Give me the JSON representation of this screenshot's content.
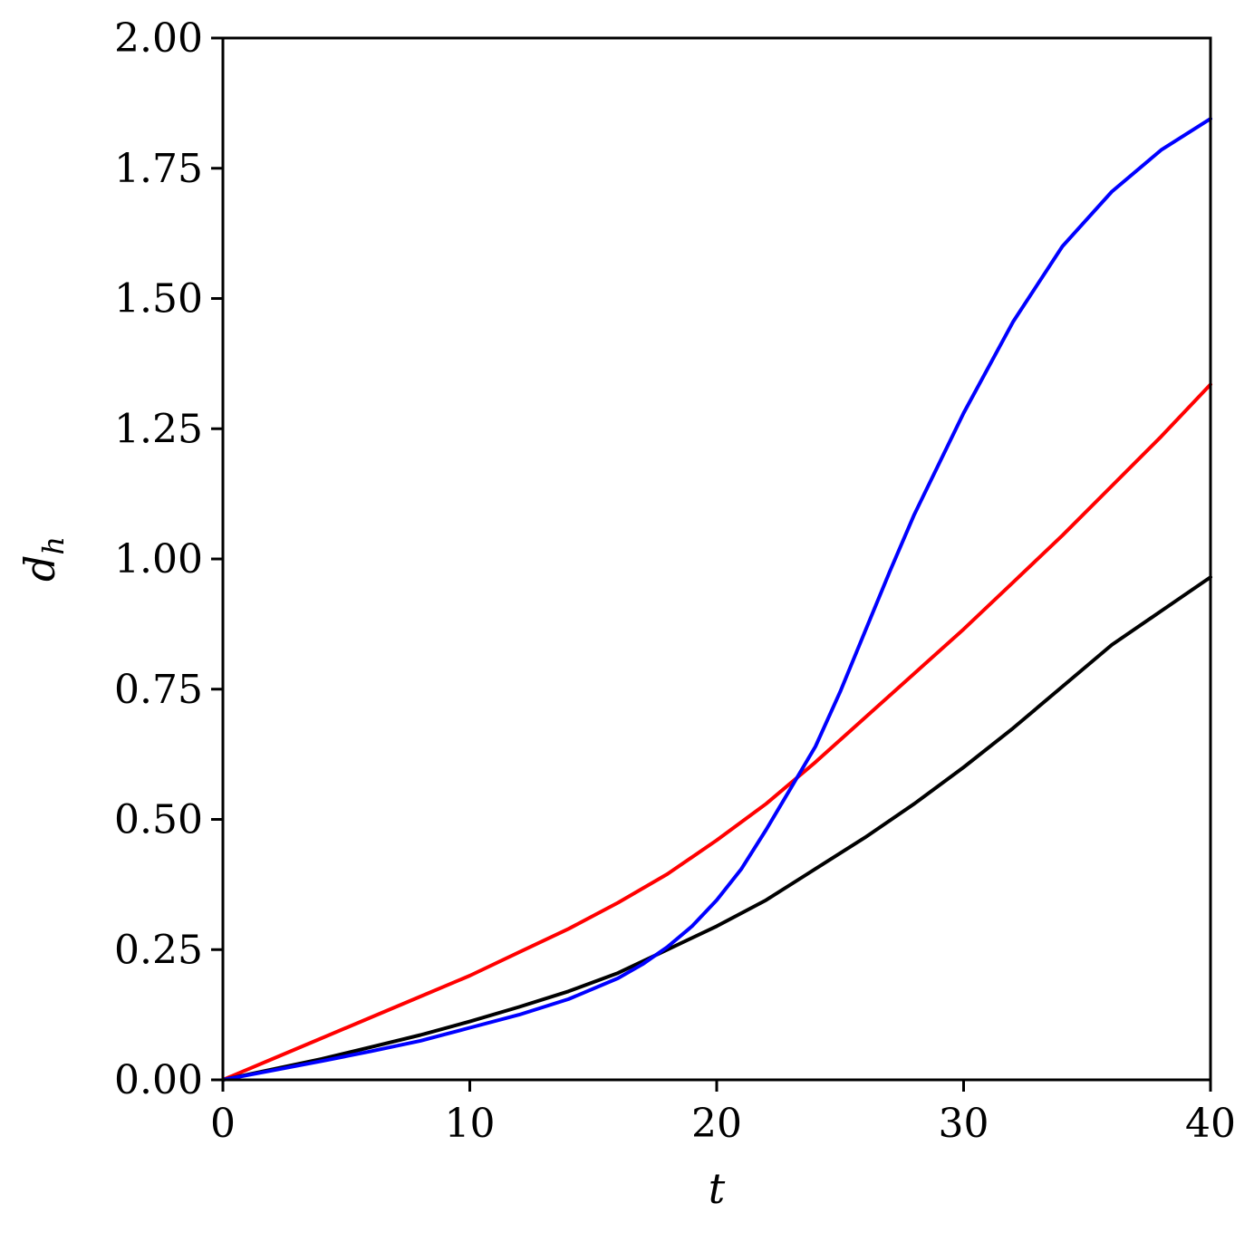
{
  "chart_data": {
    "type": "line",
    "title": "",
    "xlabel": "t",
    "ylabel": {
      "base": "d",
      "sub": "h"
    },
    "xlim": [
      0,
      40
    ],
    "ylim": [
      0,
      2
    ],
    "xticks": [
      0,
      10,
      20,
      30,
      40
    ],
    "xtick_labels": [
      "0",
      "10",
      "20",
      "30",
      "40"
    ],
    "yticks": [
      0,
      0.25,
      0.5,
      0.75,
      1.0,
      1.25,
      1.5,
      1.75,
      2.0
    ],
    "ytick_labels": [
      "0.00",
      "0.25",
      "0.50",
      "0.75",
      "1.00",
      "1.25",
      "1.50",
      "1.75",
      "2.00"
    ],
    "grid": false,
    "legend": "none",
    "series": [
      {
        "color": "#ff0000",
        "x": [
          0,
          2,
          4,
          6,
          8,
          10,
          12,
          14,
          16,
          18,
          20,
          22,
          24,
          26,
          28,
          30,
          32,
          34,
          36,
          38,
          40
        ],
        "y": [
          0,
          0.04,
          0.08,
          0.12,
          0.16,
          0.2,
          0.245,
          0.29,
          0.34,
          0.395,
          0.46,
          0.53,
          0.61,
          0.695,
          0.78,
          0.865,
          0.955,
          1.045,
          1.14,
          1.235,
          1.335
        ]
      },
      {
        "color": "#000000",
        "x": [
          0,
          2,
          4,
          6,
          8,
          10,
          12,
          14,
          16,
          18,
          20,
          22,
          24,
          26,
          28,
          30,
          32,
          34,
          36,
          38,
          40
        ],
        "y": [
          0,
          0.02,
          0.04,
          0.063,
          0.086,
          0.112,
          0.14,
          0.17,
          0.205,
          0.25,
          0.295,
          0.345,
          0.405,
          0.465,
          0.53,
          0.6,
          0.675,
          0.755,
          0.835,
          0.9,
          0.965
        ]
      },
      {
        "color": "#0000ff",
        "x": [
          0,
          2,
          4,
          6,
          8,
          10,
          12,
          14,
          16,
          17,
          18,
          19,
          20,
          21,
          22,
          23,
          24,
          25,
          26,
          27,
          28,
          30,
          32,
          34,
          36,
          38,
          40
        ],
        "y": [
          0,
          0.018,
          0.036,
          0.055,
          0.075,
          0.1,
          0.125,
          0.155,
          0.195,
          0.222,
          0.255,
          0.295,
          0.345,
          0.405,
          0.48,
          0.56,
          0.64,
          0.745,
          0.86,
          0.975,
          1.085,
          1.28,
          1.455,
          1.6,
          1.705,
          1.785,
          1.845
        ]
      }
    ]
  }
}
